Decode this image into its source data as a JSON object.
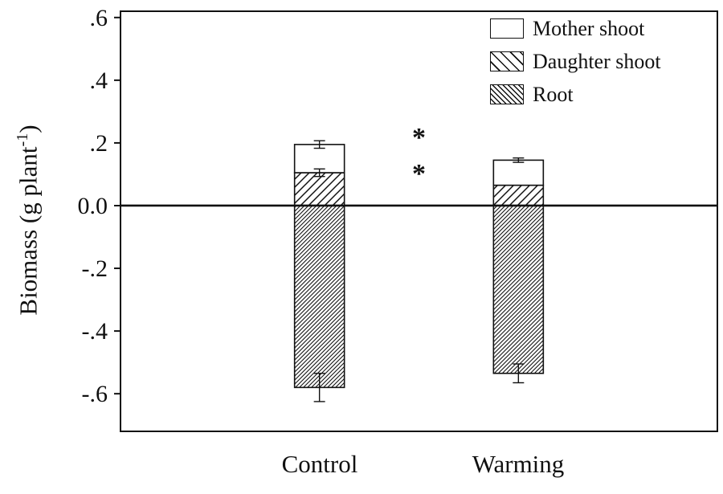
{
  "figure": {
    "background": "#ffffff",
    "line_color": "#111111"
  },
  "chart_data": {
    "type": "bar",
    "stacked": true,
    "title": "",
    "xlabel": "",
    "ylabel": {
      "text": "Biomass (g plant",
      "superscript": "-1",
      "suffix": ")"
    },
    "categories": [
      "Control",
      "Warming"
    ],
    "series": [
      {
        "name": "Mother shoot",
        "pattern": "none",
        "values": [
          0.09,
          0.08
        ]
      },
      {
        "name": "Daughter shoot",
        "pattern": "hatch-light",
        "values": [
          0.105,
          0.065
        ]
      },
      {
        "name": "Root",
        "pattern": "hatch-dense",
        "values": [
          -0.58,
          -0.535
        ]
      }
    ],
    "stack_order_positive": [
      "Daughter shoot",
      "Mother shoot"
    ],
    "y_ticks": [
      {
        "value": 0.6,
        "label": ".6"
      },
      {
        "value": 0.4,
        "label": ".4"
      },
      {
        "value": 0.2,
        "label": ".2"
      },
      {
        "value": 0.0,
        "label": "0.0"
      },
      {
        "value": -0.2,
        "label": "-.2"
      },
      {
        "value": -0.4,
        "label": "-.4"
      },
      {
        "value": -0.6,
        "label": "-.6"
      }
    ],
    "ylim": [
      -0.72,
      0.62
    ],
    "zero_line": true,
    "grid": false,
    "error_bars": [
      {
        "x": "Control",
        "y": 0.195,
        "err": 0.012
      },
      {
        "x": "Control",
        "y": 0.105,
        "err": 0.012
      },
      {
        "x": "Warming",
        "y": 0.145,
        "err": 0.007
      },
      {
        "x": "Control",
        "y": -0.58,
        "err": 0.045
      },
      {
        "x": "Warming",
        "y": -0.535,
        "err": 0.03
      }
    ],
    "annotations": [
      {
        "text": "*",
        "x_frac": 0.5,
        "y": 0.22
      },
      {
        "text": "*",
        "x_frac": 0.5,
        "y": 0.105
      }
    ],
    "legend": {
      "position": "top-right",
      "entries": [
        {
          "label": "Mother shoot",
          "pattern": "none"
        },
        {
          "label": "Daughter shoot",
          "pattern": "hatch-light"
        },
        {
          "label": "Root",
          "pattern": "hatch-dense"
        }
      ]
    }
  }
}
